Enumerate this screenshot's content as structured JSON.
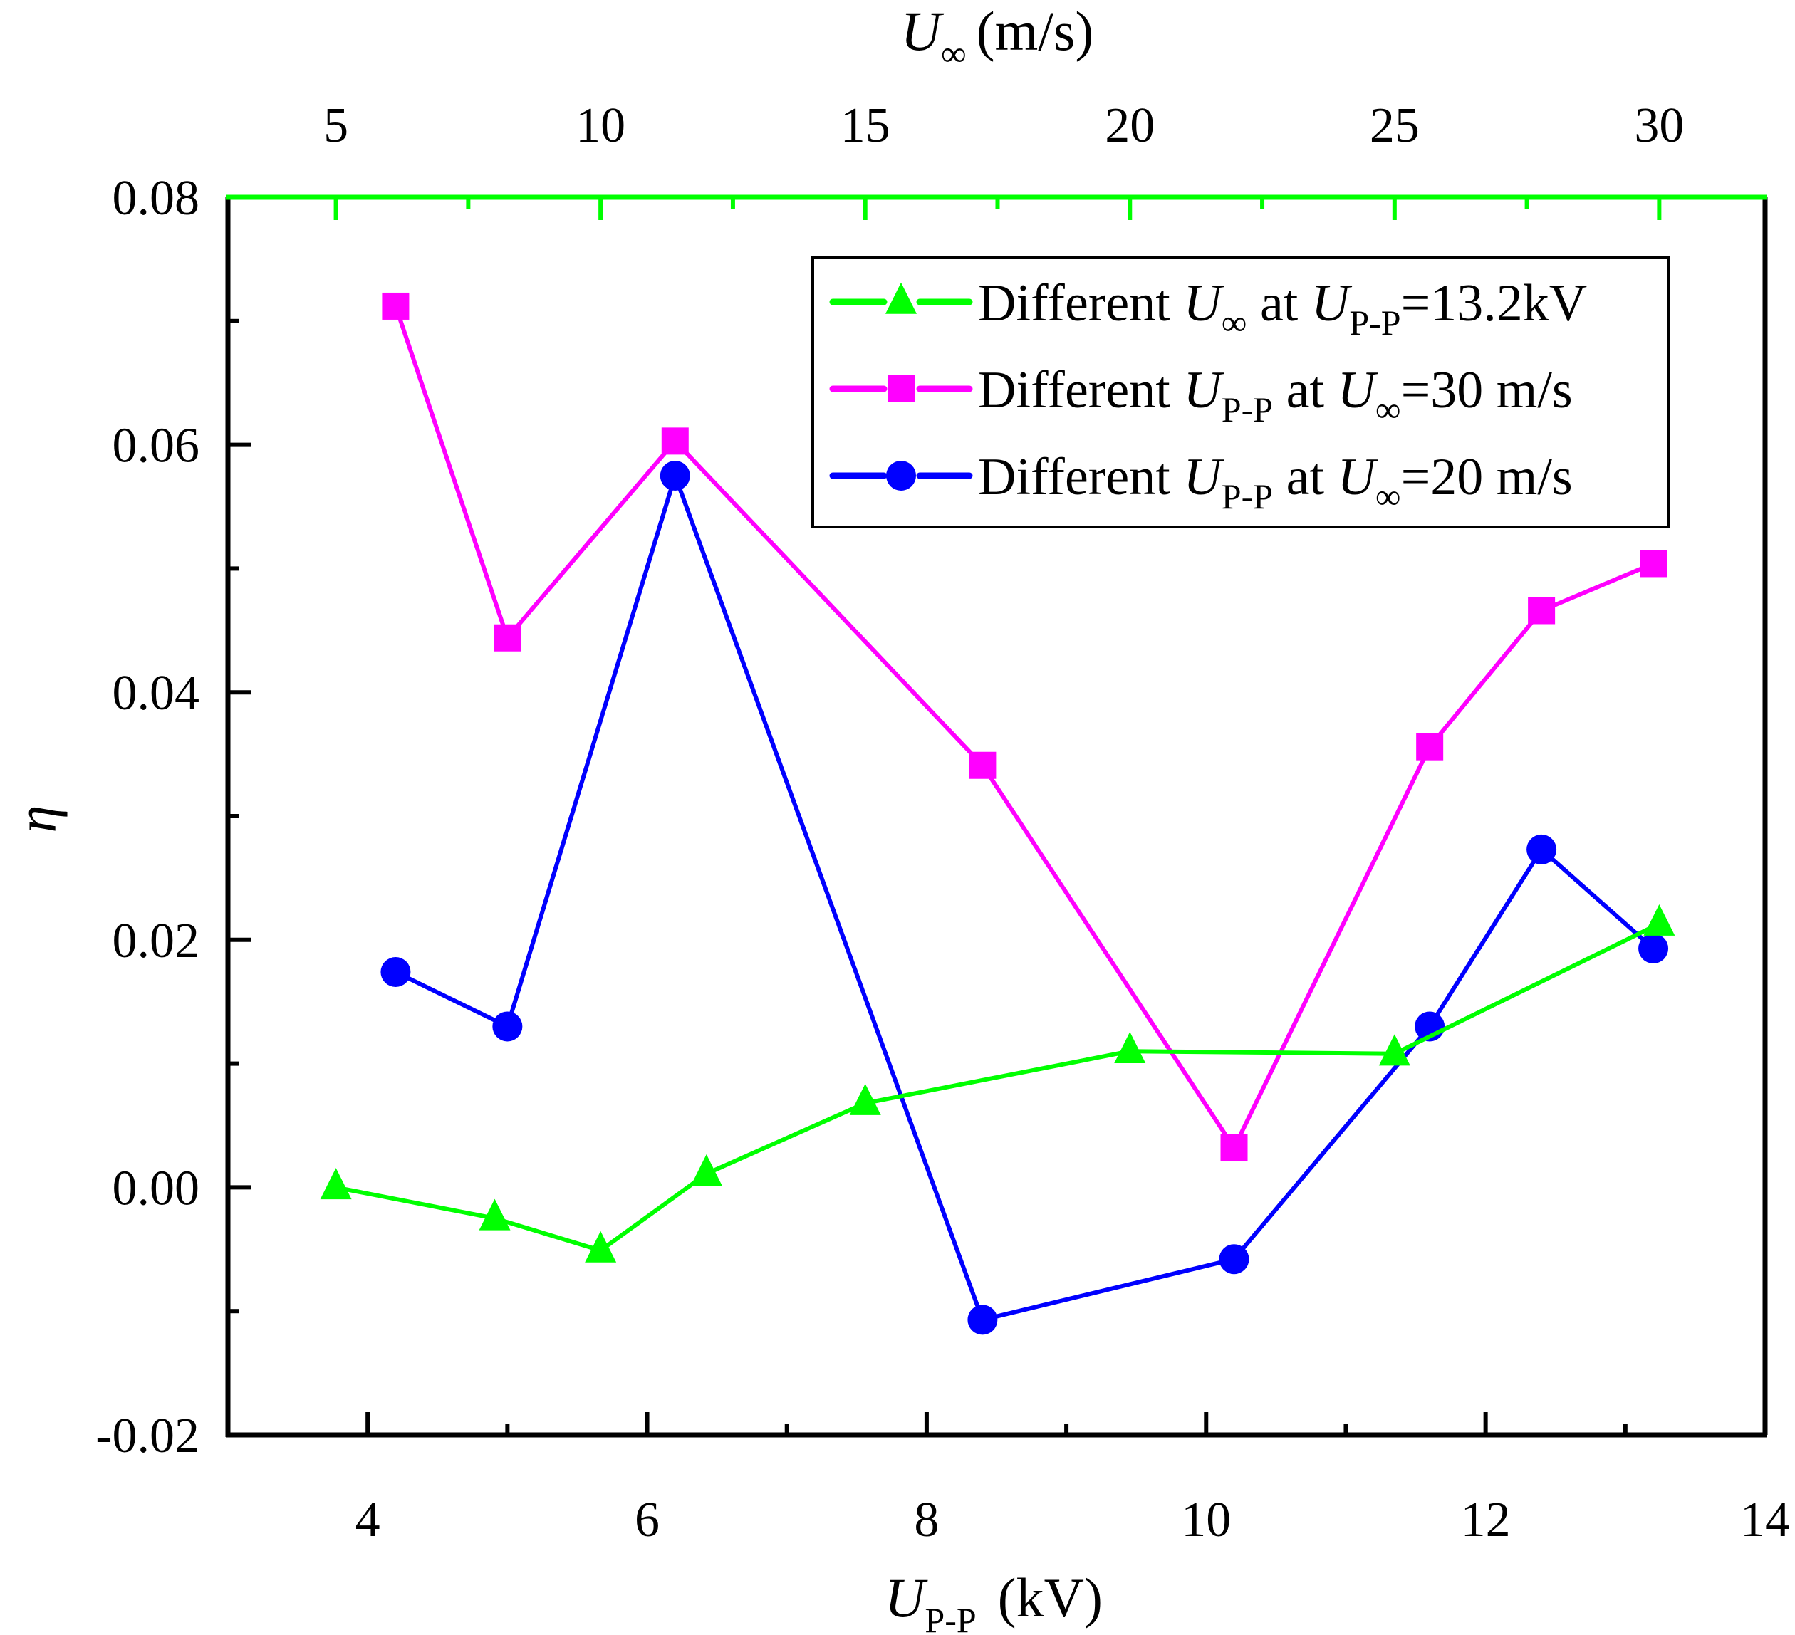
{
  "chart_data": {
    "type": "line",
    "title": "",
    "xlabel": {
      "symbol": "U",
      "sub": "P-P",
      "unit": "(kV)"
    },
    "ylabel": "η",
    "x2label": {
      "symbol": "U",
      "sub": "∞",
      "unit": "(m/s)"
    },
    "xlim": [
      3,
      14
    ],
    "x2lim": [
      2.96,
      32.0
    ],
    "ylim": [
      -0.02,
      0.08
    ],
    "x_ticks": [
      4,
      6,
      8,
      10,
      12,
      14
    ],
    "x_tick_labels": [
      "4",
      "6",
      "8",
      "10",
      "12",
      "14"
    ],
    "x2_ticks": [
      5,
      10,
      15,
      20,
      25,
      30
    ],
    "x2_tick_labels": [
      "5",
      "10",
      "15",
      "20",
      "25",
      "30"
    ],
    "y_ticks": [
      -0.02,
      0.0,
      0.02,
      0.04,
      0.06,
      0.08
    ],
    "y_tick_labels": [
      "-0.02",
      "0.00",
      "0.02",
      "0.04",
      "0.06",
      "0.08"
    ],
    "grid": false,
    "legend_position": "top-right",
    "colors": {
      "axis": "#000000",
      "top_axis": "#00ff00"
    },
    "series": [
      {
        "name": "Different U∞ at UP-P=13.2kV",
        "legend": {
          "pre": "Different ",
          "sym1": "U",
          "sub1": "∞",
          "mid": " at ",
          "sym2": "U",
          "sub2": "P-P",
          "post": "=13.2kV"
        },
        "axis": "top",
        "marker": "triangle",
        "color": "#00ff00",
        "x": [
          5,
          8,
          10,
          12,
          15,
          20,
          25,
          30
        ],
        "y": [
          0.0,
          -0.0025,
          -0.0051,
          0.0011,
          0.0068,
          0.011,
          0.0108,
          0.0213
        ]
      },
      {
        "name": "Different UP-P at U∞=30 m/s",
        "legend": {
          "pre": "Different ",
          "sym1": "U",
          "sub1": "P-P",
          "mid": " at ",
          "sym2": "U",
          "sub2": "∞",
          "post": "=30 m/s"
        },
        "axis": "bottom",
        "marker": "square",
        "color": "#ff00ff",
        "x": [
          4.2,
          5.0,
          6.2,
          8.4,
          10.2,
          11.6,
          12.4,
          13.2
        ],
        "y": [
          0.0712,
          0.0444,
          0.0603,
          0.0341,
          0.0032,
          0.0356,
          0.0466,
          0.0504
        ]
      },
      {
        "name": "Different UP-P at U∞=20 m/s",
        "legend": {
          "pre": "Different ",
          "sym1": "U",
          "sub1": "P-P",
          "mid": " at ",
          "sym2": "U",
          "sub2": "∞",
          "post": "=20 m/s"
        },
        "axis": "bottom",
        "marker": "circle",
        "color": "#0000ff",
        "x": [
          4.2,
          5.0,
          6.2,
          8.4,
          10.2,
          11.6,
          12.4,
          13.2
        ],
        "y": [
          0.0174,
          0.013,
          0.0575,
          -0.0107,
          -0.0058,
          0.013,
          0.0273,
          0.0193
        ]
      }
    ]
  }
}
